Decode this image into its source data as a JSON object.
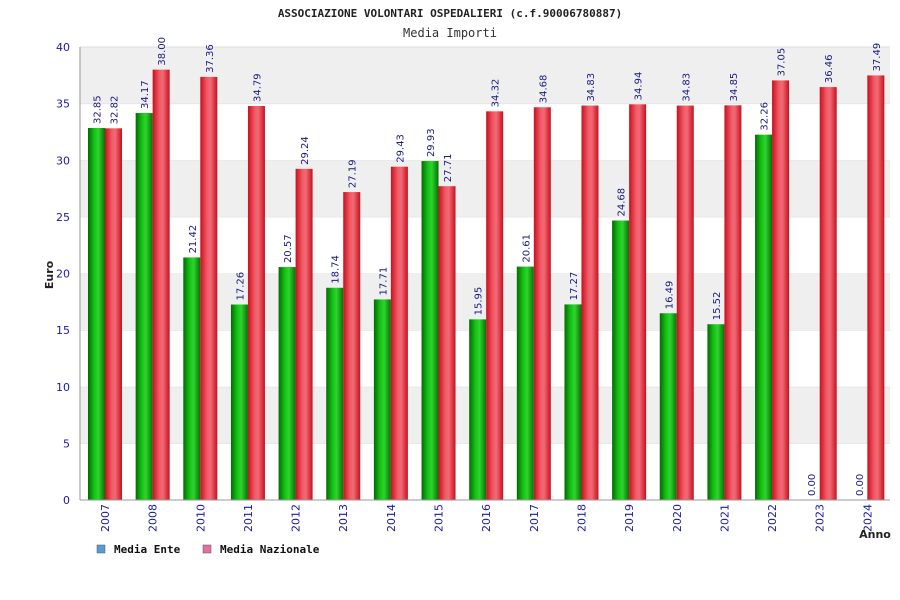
{
  "colors": {
    "ente": "#0a9a0a",
    "ente_legend": "#5b9bd5",
    "nazionale": "#e8182a",
    "nazionale_legend": "#e46fa0",
    "band": "#efefef",
    "tick_text": "#1a1aa6"
  },
  "chart_data": {
    "type": "bar",
    "title": "ASSOCIAZIONE VOLONTARI OSPEDALIERI (c.f.90006780887)",
    "subtitle": "Media Importi",
    "xlabel": "Anno",
    "ylabel": "Euro",
    "ylim": [
      0,
      40
    ],
    "yticks": [
      "0",
      "5",
      "10",
      "15",
      "20",
      "25",
      "30",
      "35",
      "40"
    ],
    "grid": "horizontal alternating bands",
    "legend_position": "bottom-left",
    "categories": [
      "2007",
      "2008",
      "2010",
      "2011",
      "2012",
      "2013",
      "2014",
      "2015",
      "2016",
      "2017",
      "2018",
      "2019",
      "2020",
      "2021",
      "2022",
      "2023",
      "2024"
    ],
    "series": [
      {
        "name": "Media Ente",
        "values": [
          32.85,
          34.17,
          21.42,
          17.26,
          20.57,
          18.74,
          17.71,
          29.93,
          15.95,
          20.61,
          17.27,
          24.68,
          16.49,
          15.52,
          32.26,
          0.0,
          0.0
        ],
        "labels": [
          "32.85",
          "34.17",
          "21.42",
          "17.26",
          "20.57",
          "18.74",
          "17.71",
          "29.93",
          "15.95",
          "20.61",
          "17.27",
          "24.68",
          "16.49",
          "15.52",
          "32.26",
          "0.00",
          "0.00"
        ]
      },
      {
        "name": "Media Nazionale",
        "values": [
          32.82,
          38.0,
          37.36,
          34.79,
          29.24,
          27.19,
          29.43,
          27.71,
          34.32,
          34.68,
          34.83,
          34.94,
          34.83,
          34.85,
          37.05,
          36.46,
          37.49
        ],
        "labels": [
          "32.82",
          "38.00",
          "37.36",
          "34.79",
          "29.24",
          "27.19",
          "29.43",
          "27.71",
          "34.32",
          "34.68",
          "34.83",
          "34.94",
          "34.83",
          "34.85",
          "37.05",
          "36.46",
          "37.49"
        ]
      }
    ]
  }
}
